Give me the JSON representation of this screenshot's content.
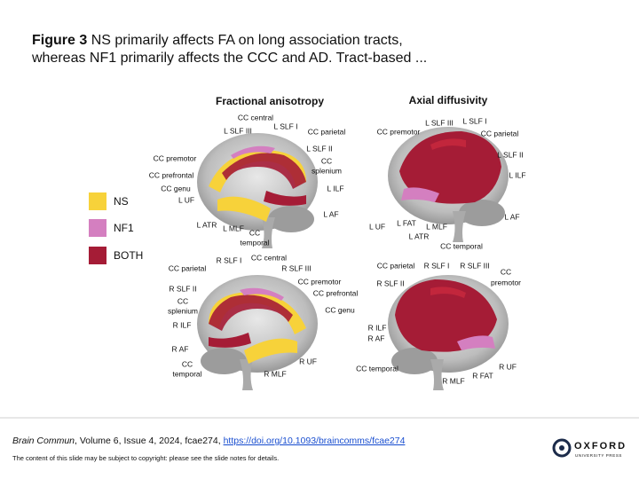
{
  "title": {
    "figure": "Figure 3",
    "line1": "NS primarily affects FA on long association tracts,",
    "line2": "whereas NF1 primarily affects the CCC and AD. Tract-based ..."
  },
  "panels": [
    {
      "heading": "Fractional anisotropy"
    },
    {
      "heading": "Axial diffusivity"
    }
  ],
  "legend": [
    {
      "label": "NS",
      "color": "#f7d23a"
    },
    {
      "label": "NF1",
      "color": "#d47fc0"
    },
    {
      "label": "BOTH",
      "color": "#a51c36"
    }
  ],
  "images": [
    {
      "labels": [
        "CC central",
        "L SLF I",
        "L SLF III",
        "CC parietal",
        "L SLF II",
        "CC premotor",
        "CC",
        "splenium",
        "CC prefrontal",
        "L ILF",
        "CC genu",
        "L UF",
        "L AF",
        "L ATR",
        "L MLF",
        "CC",
        "temporal"
      ]
    },
    {
      "labels": [
        "L SLF III",
        "L SLF I",
        "CC premotor",
        "CC parietal",
        "L SLF II",
        "L ILF",
        "L AF",
        "L UF",
        "L FAT",
        "L MLF",
        "L ATR",
        "CC temporal"
      ]
    },
    {
      "labels": [
        "R SLF I",
        "CC central",
        "CC parietal",
        "R SLF III",
        "CC premotor",
        "R SLF II",
        "CC prefrontal",
        "CC",
        "splenium",
        "CC genu",
        "R ILF",
        "R AF",
        "CC",
        "temporal",
        "R UF",
        "R MLF"
      ]
    },
    {
      "labels": [
        "CC parietal",
        "R SLF I",
        "R SLF III",
        "CC",
        "premotor",
        "R SLF II",
        "R ILF",
        "R AF",
        "CC temporal",
        "R UF",
        "R MLF",
        "R FAT"
      ]
    }
  ],
  "footer": {
    "journal": "Brain Commun",
    "citation": ", Volume 6, Issue 4, 2024, fcae274, ",
    "link": "https://doi.org/10.1093/braincomms/fcae274",
    "note": "The content of this slide may be subject to copyright: please see the slide notes for details."
  },
  "logo": {
    "name": "OXFORD",
    "sub": "UNIVERSITY PRESS"
  }
}
